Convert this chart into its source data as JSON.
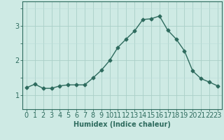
{
  "x": [
    0,
    1,
    2,
    3,
    4,
    5,
    6,
    7,
    8,
    9,
    10,
    11,
    12,
    13,
    14,
    15,
    16,
    17,
    18,
    19,
    20,
    21,
    22,
    23
  ],
  "y": [
    1.22,
    1.32,
    1.2,
    1.2,
    1.27,
    1.3,
    1.3,
    1.3,
    1.5,
    1.72,
    2.0,
    2.38,
    2.62,
    2.85,
    3.18,
    3.2,
    3.28,
    2.87,
    2.62,
    2.28,
    1.7,
    1.48,
    1.38,
    1.27
  ],
  "line_color": "#2e6b5e",
  "marker": "D",
  "marker_size": 2.5,
  "bg_color": "#ceeae4",
  "grid_color_major": "#aacfc8",
  "grid_color_minor": "#bcddd8",
  "xlabel": "Humidex (Indice chaleur)",
  "xlabel_fontsize": 7,
  "yticks": [
    1,
    2,
    3
  ],
  "ylim": [
    0.6,
    3.7
  ],
  "xlim": [
    -0.5,
    23.5
  ],
  "tick_fontsize": 7,
  "line_width": 1.0
}
